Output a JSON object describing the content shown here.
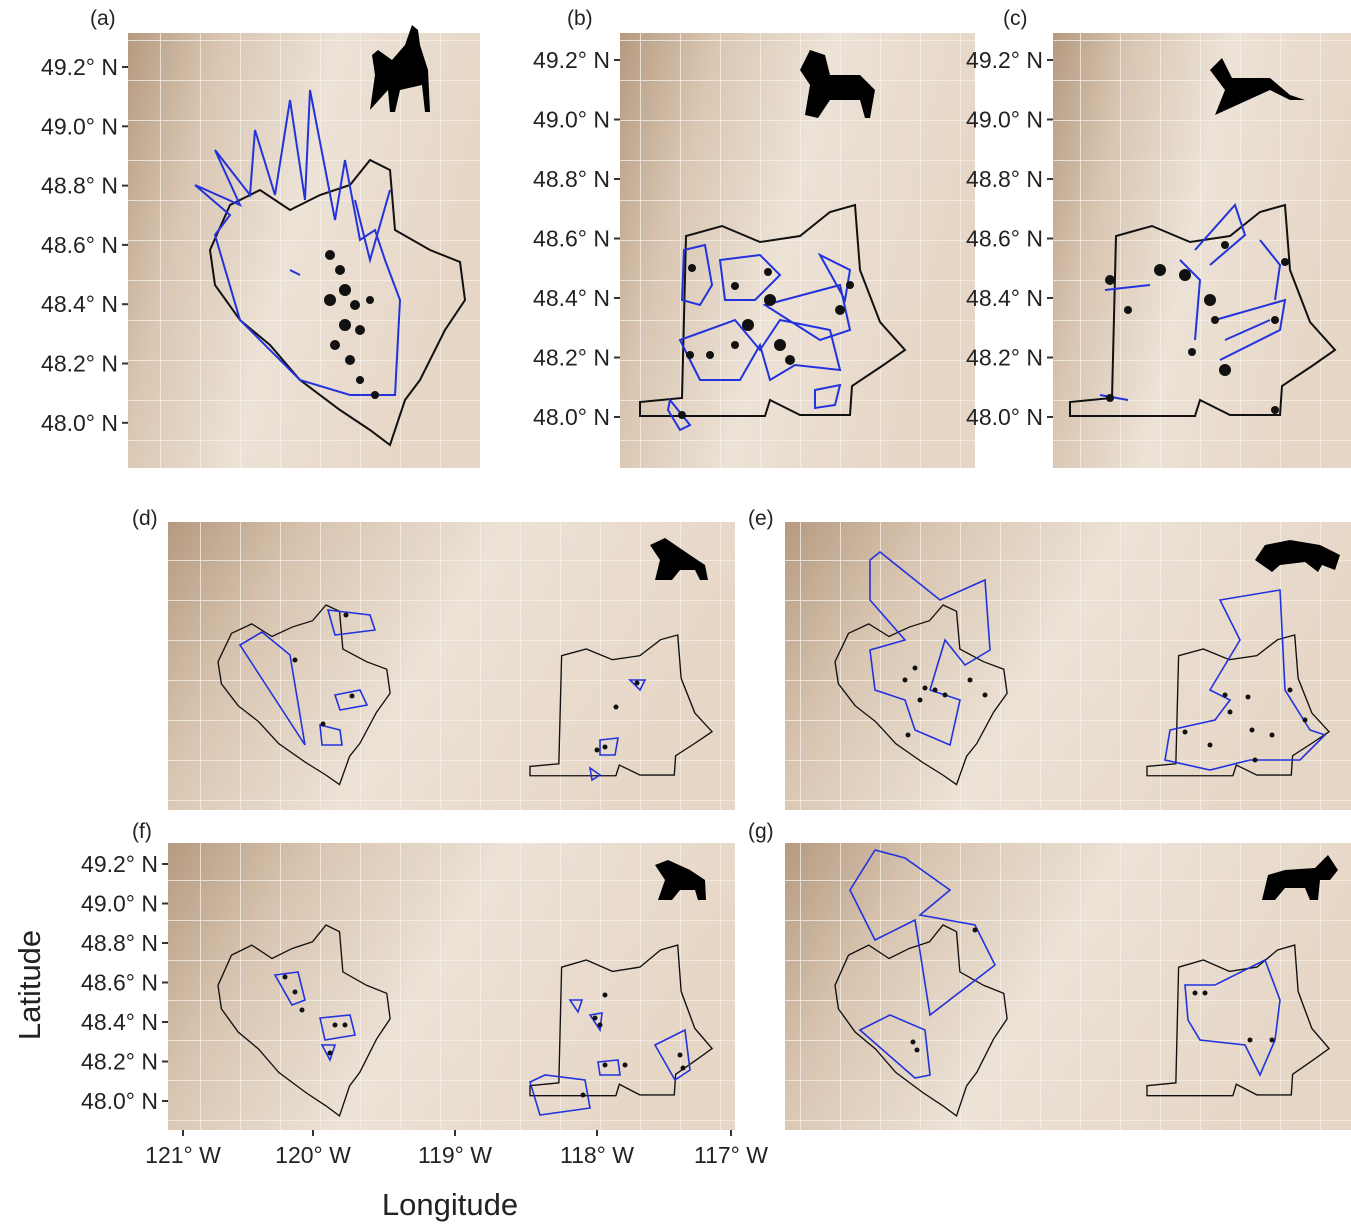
{
  "panels": [
    {
      "label": "(a)"
    },
    {
      "label": "(b)"
    },
    {
      "label": "(c)"
    },
    {
      "label": "(d)"
    },
    {
      "label": "(e)"
    },
    {
      "label": "(f)"
    },
    {
      "label": "(g)"
    }
  ],
  "axes": {
    "x_title": "Longitude",
    "y_title": "Latitude",
    "lat_ticks": [
      "49.2° N",
      "49.0° N",
      "48.8° N",
      "48.6° N",
      "48.4° N",
      "48.2° N",
      "48.0° N"
    ],
    "lon_ticks": [
      "121° W",
      "120° W",
      "119° W",
      "118° W",
      "117° W"
    ]
  }
}
